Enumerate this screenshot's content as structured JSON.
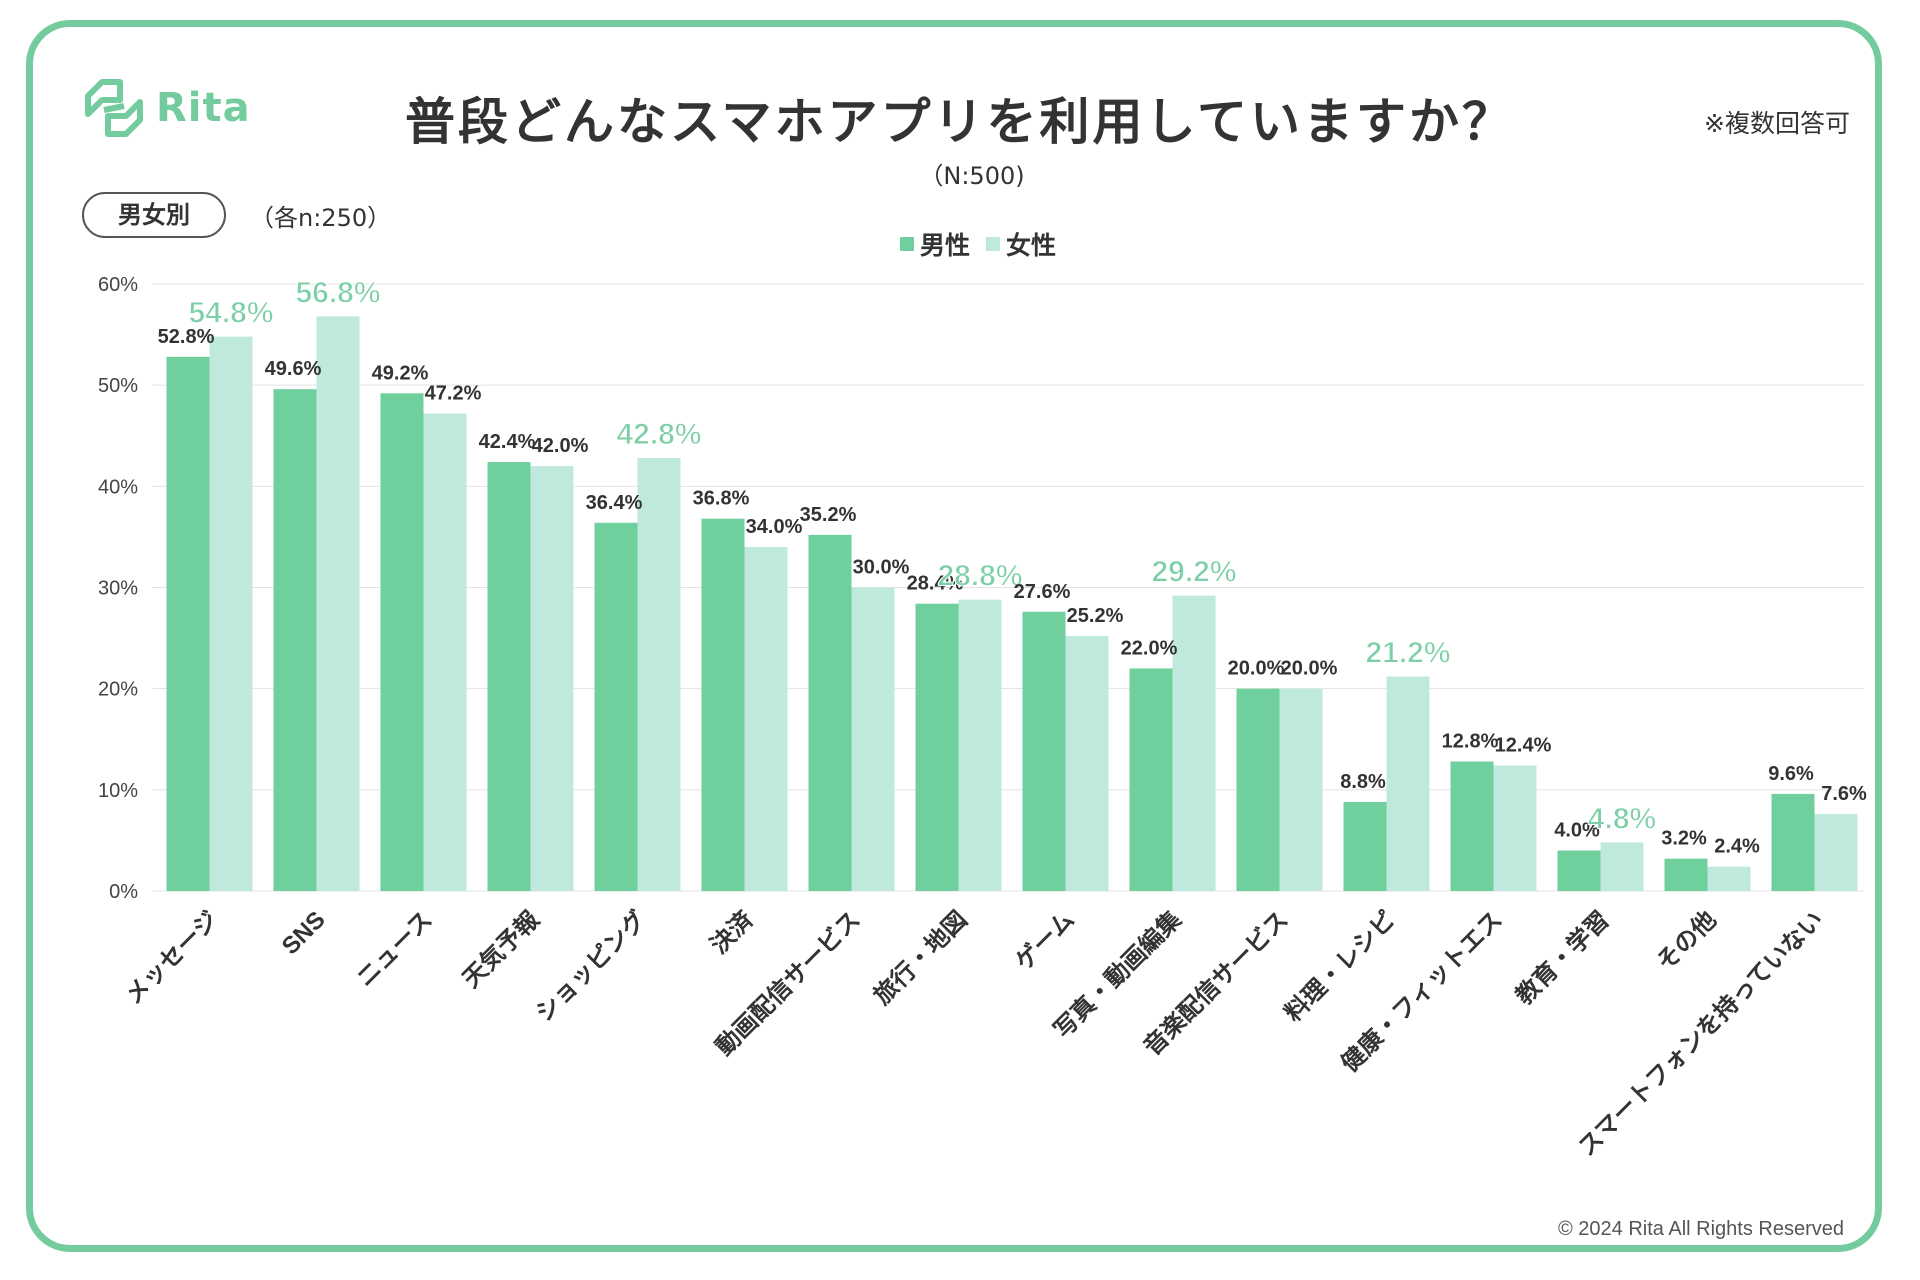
{
  "brand": {
    "name": "Rita",
    "color": "#74cc9e"
  },
  "header": {
    "title": "普段どんなスマホアプリを利用していますか？",
    "note": "※複数回答可",
    "sample_total": "（N:500)",
    "segment_badge": "男女別",
    "segment_sample": "（各n:250）"
  },
  "footer": {
    "copyright": "© 2024 Rita All Rights Reserved"
  },
  "colors": {
    "male": "#6fcf9d",
    "female": "#bfe9dc",
    "female_label": "#7ccfa6",
    "grid": "#e3e3e3",
    "text": "#333333"
  },
  "chart_data": {
    "type": "bar",
    "title": "普段どんなスマホアプリを利用していますか？",
    "xlabel": "",
    "ylabel": "",
    "ylim": [
      0,
      60
    ],
    "yticks": [
      "0%",
      "10%",
      "20%",
      "30%",
      "40%",
      "50%",
      "60%"
    ],
    "grid": true,
    "legend_position": "top-center",
    "categories": [
      "メッセージ",
      "SNS",
      "ニュース",
      "天気予報",
      "ショッピング",
      "決済",
      "動画配信サービス",
      "旅行・地図",
      "ゲーム",
      "写真・動画編集",
      "音楽配信サービス",
      "料理・レシピ",
      "健康・フィットエス",
      "教育・学習",
      "その他",
      "スマートフォンを持っていない"
    ],
    "series": [
      {
        "name": "男性",
        "values": [
          52.8,
          49.6,
          49.2,
          42.4,
          36.4,
          36.8,
          35.2,
          28.4,
          27.6,
          22.0,
          20.0,
          8.8,
          12.8,
          4.0,
          3.2,
          9.6
        ],
        "labels": [
          "52.8%",
          "49.6%",
          "49.2%",
          "42.4%",
          "36.4%",
          "36.8%",
          "35.2%",
          "28.4%",
          "27.6%",
          "22.0%",
          "20.0%",
          "8.8%",
          "12.8%",
          "4.0%",
          "3.2%",
          "9.6%"
        ]
      },
      {
        "name": "女性",
        "values": [
          54.8,
          56.8,
          47.2,
          42.0,
          42.8,
          34.0,
          30.0,
          28.8,
          25.2,
          29.2,
          20.0,
          21.2,
          12.4,
          4.8,
          2.4,
          7.6
        ],
        "labels": [
          "54.8%",
          "56.8%",
          "47.2%",
          "42.0%",
          "42.8%",
          "34.0%",
          "30.0%",
          "28.8%",
          "25.2%",
          "29.2%",
          "20.0%",
          "21.2%",
          "12.4%",
          "4.8%",
          "2.4%",
          "7.6%"
        ]
      }
    ]
  }
}
